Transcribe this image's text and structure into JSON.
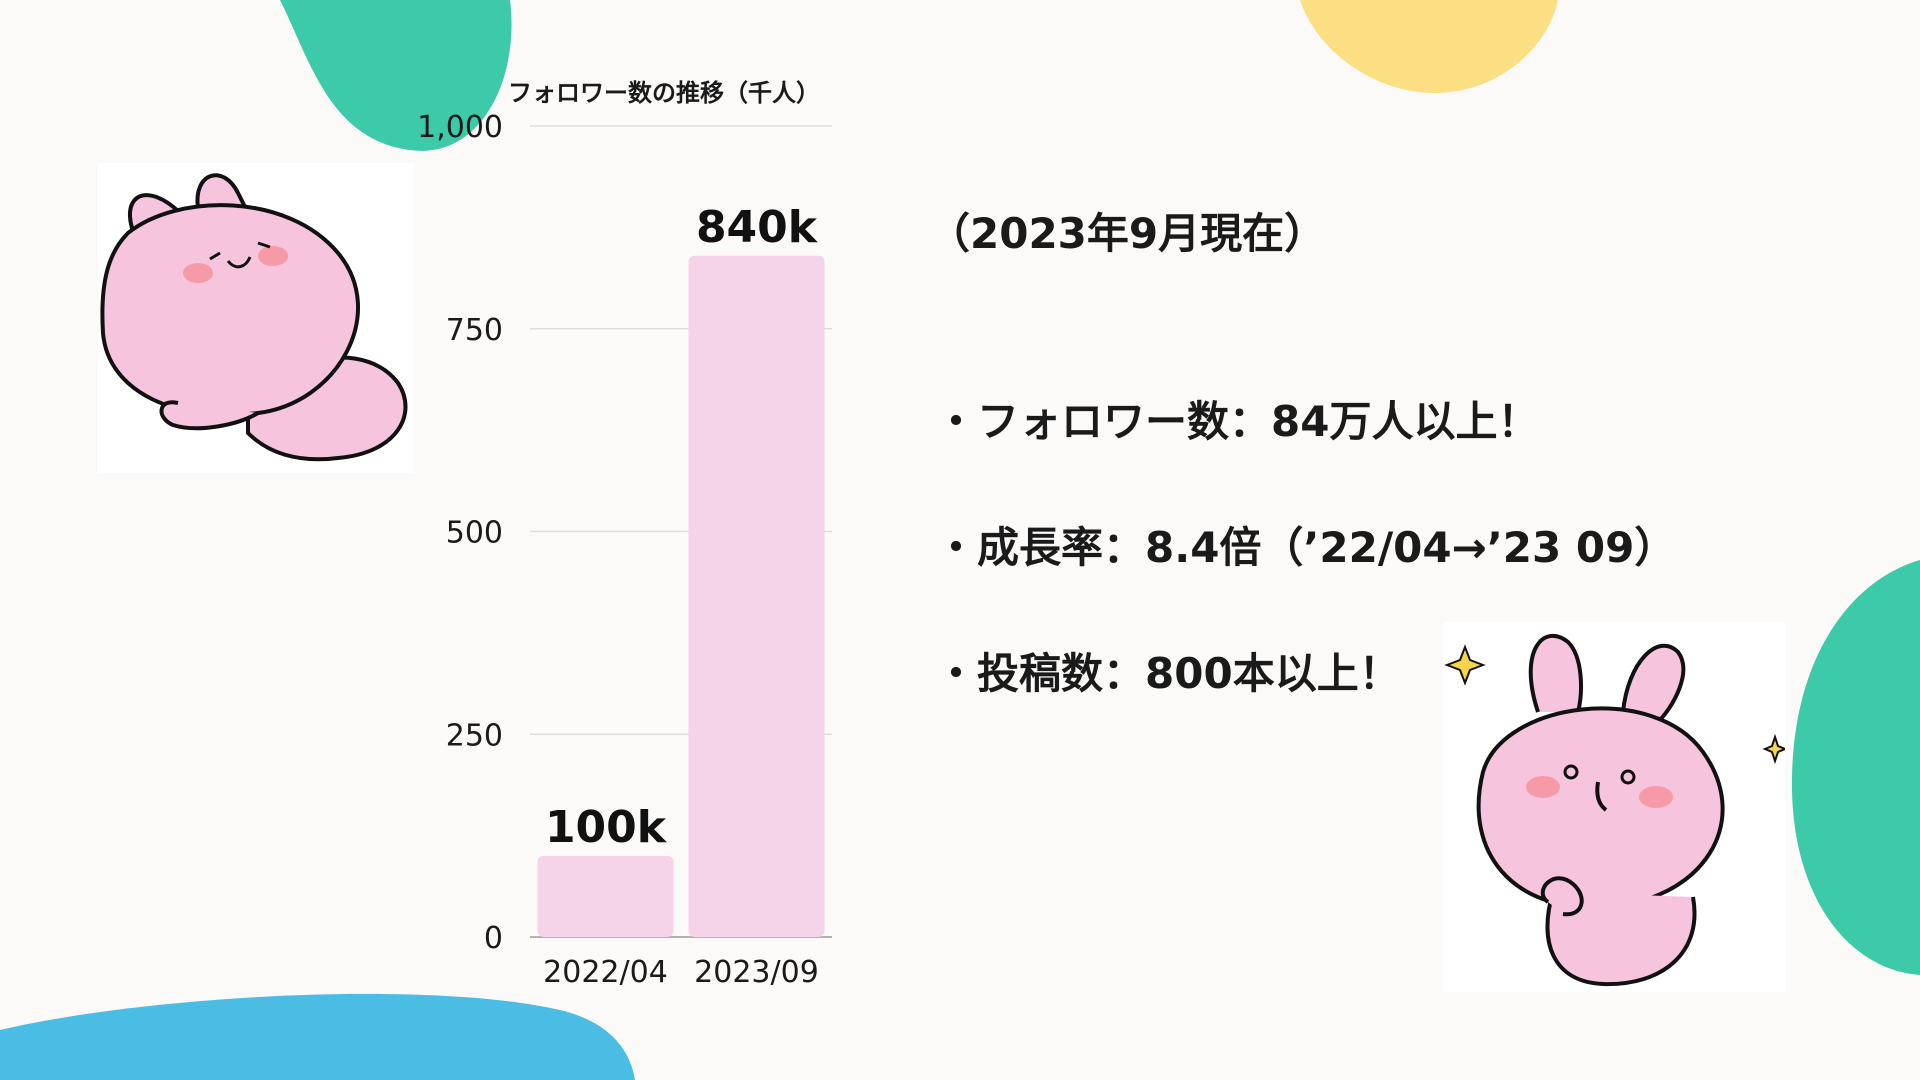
{
  "colors": {
    "background": "#fbfaf8",
    "bar": "#f5d3e8",
    "grid": "#dddddd",
    "blob_green": "#3ccaa9",
    "blob_yellow": "#fddf83",
    "blob_blue": "#4bbde4",
    "mascot_pink": "#f6c4dc",
    "cheek": "#f69aa8",
    "sparkle": "#f7d54a"
  },
  "chart_data": {
    "type": "bar",
    "title": "フォロワー数の推移（千人）",
    "categories": [
      "2022/04",
      "2023/09"
    ],
    "values": [
      100,
      840
    ],
    "data_labels": [
      "100k",
      "840k"
    ],
    "ylim": [
      0,
      1000
    ],
    "yticks": [
      0,
      250,
      500,
      750,
      1000
    ],
    "ytick_labels": [
      "0",
      "250",
      "500",
      "750",
      "1,000"
    ],
    "grid": true
  },
  "info": {
    "as_of": "（2023年9月現在）",
    "items": [
      {
        "bullet": "・",
        "label": "フォロワー数：",
        "value": "84万人以上！"
      },
      {
        "bullet": "・",
        "label": "成長率：",
        "value": "8.4倍（’22/04→’23 09）"
      },
      {
        "bullet": "・",
        "label": "投稿数：",
        "value": "800本以上！"
      }
    ]
  },
  "icons": [
    "rabbit-mascot-lying",
    "rabbit-mascot-sparkle",
    "sparkle-icon"
  ]
}
